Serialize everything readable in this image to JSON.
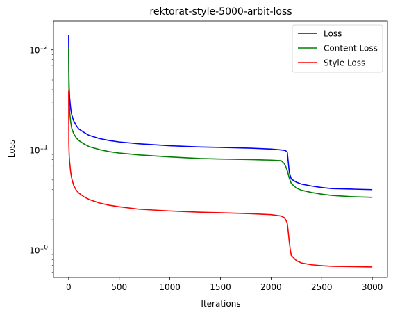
{
  "chart_data": {
    "type": "line",
    "title": "rektorat-style-5000-arbit-loss",
    "xlabel": "Iterations",
    "ylabel": "Loss",
    "yscale": "log",
    "xlim": [
      -150,
      3150
    ],
    "ylim": [
      5300000000.0,
      1950000000000.0
    ],
    "xticks": [
      0,
      500,
      1000,
      1500,
      2000,
      2500,
      3000
    ],
    "xtick_labels": [
      "0",
      "500",
      "1000",
      "1500",
      "2000",
      "2500",
      "3000"
    ],
    "yticks": [
      10000000000.0,
      100000000000.0,
      1000000000000.0
    ],
    "ytick_labels": [
      {
        "base": "10",
        "exp": "10"
      },
      {
        "base": "10",
        "exp": "11"
      },
      {
        "base": "10",
        "exp": "12"
      }
    ],
    "legend_position": "top-right",
    "grid": false,
    "series": [
      {
        "name": "Loss",
        "color": "#0000ff",
        "x": [
          0,
          2,
          5,
          10,
          20,
          30,
          50,
          75,
          100,
          150,
          200,
          300,
          400,
          500,
          700,
          1000,
          1300,
          1500,
          1800,
          2000,
          2100,
          2130,
          2145,
          2160,
          2170,
          2180,
          2190,
          2200,
          2250,
          2300,
          2400,
          2500,
          2600,
          2800,
          3000
        ],
        "y": [
          1400000000000.0,
          600000000000.0,
          420000000000.0,
          330000000000.0,
          260000000000.0,
          225000000000.0,
          195000000000.0,
          175000000000.0,
          162000000000.0,
          150000000000.0,
          140000000000.0,
          130000000000.0,
          124000000000.0,
          120000000000.0,
          115000000000.0,
          110000000000.0,
          107000000000.0,
          106000000000.0,
          104000000000.0,
          102000000000.0,
          100000000000.0,
          99000000000.0,
          98000000000.0,
          95000000000.0,
          75000000000.0,
          60000000000.0,
          55000000000.0,
          51000000000.0,
          47500000000.0,
          45500000000.0,
          43500000000.0,
          42000000000.0,
          41000000000.0,
          40500000000.0,
          40000000000.0
        ]
      },
      {
        "name": "Content Loss",
        "color": "#008000",
        "x": [
          0,
          2,
          5,
          10,
          20,
          30,
          50,
          75,
          100,
          150,
          200,
          300,
          400,
          500,
          700,
          1000,
          1300,
          1500,
          1800,
          2000,
          2100,
          2130,
          2145,
          2160,
          2170,
          2180,
          2190,
          2200,
          2250,
          2300,
          2400,
          2500,
          2600,
          2800,
          3000
        ],
        "y": [
          1050000000000.0,
          450000000000.0,
          310000000000.0,
          240000000000.0,
          190000000000.0,
          165000000000.0,
          145000000000.0,
          132000000000.0,
          124000000000.0,
          115000000000.0,
          108000000000.0,
          101000000000.0,
          96000000000.0,
          93000000000.0,
          89000000000.0,
          85000000000.0,
          82000000000.0,
          81000000000.0,
          80000000000.0,
          79000000000.0,
          78000000000.0,
          73000000000.0,
          68000000000.0,
          62000000000.0,
          57000000000.0,
          52000000000.0,
          49000000000.0,
          46000000000.0,
          41500000000.0,
          39500000000.0,
          37500000000.0,
          36000000000.0,
          35000000000.0,
          34000000000.0,
          33500000000.0
        ]
      },
      {
        "name": "Style Loss",
        "color": "#ff0000",
        "x": [
          0,
          2,
          5,
          10,
          20,
          30,
          50,
          75,
          100,
          150,
          200,
          300,
          400,
          500,
          700,
          1000,
          1300,
          1500,
          1800,
          2000,
          2100,
          2130,
          2145,
          2160,
          2170,
          2180,
          2190,
          2200,
          2250,
          2300,
          2400,
          2500,
          2600,
          2800,
          3000
        ],
        "y": [
          390000000000.0,
          115000000000.0,
          90000000000.0,
          75000000000.0,
          60000000000.0,
          52000000000.0,
          44000000000.0,
          39500000000.0,
          37000000000.0,
          34000000000.0,
          32000000000.0,
          29500000000.0,
          28000000000.0,
          27000000000.0,
          25500000000.0,
          24500000000.0,
          23800000000.0,
          23500000000.0,
          23000000000.0,
          22500000000.0,
          21800000000.0,
          21000000000.0,
          20000000000.0,
          18500000000.0,
          15000000000.0,
          12000000000.0,
          10000000000.0,
          8800000000.0,
          7800000000.0,
          7400000000.0,
          7100000000.0,
          6950000000.0,
          6850000000.0,
          6800000000.0,
          6750000000.0
        ]
      }
    ]
  }
}
